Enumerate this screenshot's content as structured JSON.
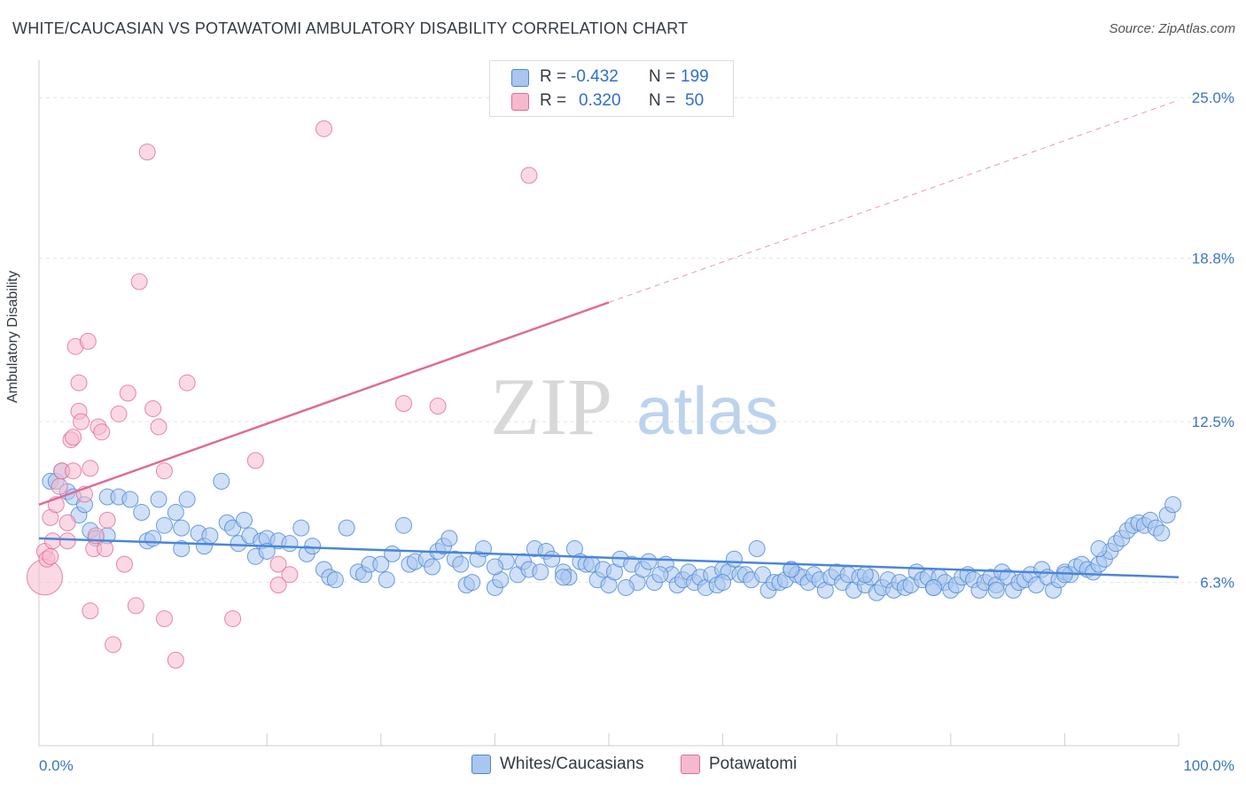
{
  "title": "WHITE/CAUCASIAN VS POTAWATOMI AMBULATORY DISABILITY CORRELATION CHART",
  "source": "Source: ZipAtlas.com",
  "watermark": {
    "zip": "ZIP",
    "atlas": "atlas"
  },
  "colors": {
    "blue": "#4a86d8",
    "blue_fill": "#a9c6ee",
    "pink": "#e06c95",
    "pink_fill": "#f5b9cd",
    "tick_label": "#3a75c4"
  },
  "legend": {
    "rows": [
      {
        "r_label": "R =",
        "r_value": "-0.432",
        "n_label": "N =",
        "n_value": "199"
      },
      {
        "r_label": "R =",
        "r_value": "0.320",
        "n_label": "N =",
        "n_value": "50"
      }
    ]
  },
  "bottom_legend": [
    "Whites/Caucasians",
    "Potawatomi"
  ],
  "chart_data": {
    "type": "scatter",
    "ylabel": "Ambulatory Disability",
    "xlim": [
      0,
      100
    ],
    "ylim": [
      0,
      26.1
    ],
    "y_ticks": [
      6.3,
      12.5,
      18.8,
      25.0
    ],
    "y_tick_labels": [
      "6.3%",
      "12.5%",
      "18.8%",
      "25.0%"
    ],
    "x_tick_labels": [
      "0.0%",
      "100.0%"
    ],
    "grid": true,
    "series": [
      {
        "name": "Whites/Caucasians",
        "color": "#4a86d8",
        "trend": {
          "x0": 0,
          "y0": 8.0,
          "x1": 100,
          "y1": 6.5,
          "dashed_to": null
        },
        "points": [
          [
            1,
            10.2
          ],
          [
            1.5,
            10.2
          ],
          [
            2,
            10.6
          ],
          [
            2.5,
            9.8
          ],
          [
            3,
            9.6
          ],
          [
            3.5,
            8.9
          ],
          [
            4,
            9.3
          ],
          [
            4.5,
            8.3
          ],
          [
            5,
            8.0
          ],
          [
            6,
            9.6
          ],
          [
            7,
            9.6
          ],
          [
            8,
            9.5
          ],
          [
            9,
            9.0
          ],
          [
            9.5,
            7.9
          ],
          [
            10,
            8.0
          ],
          [
            10.5,
            9.5
          ],
          [
            11,
            8.5
          ],
          [
            12,
            9.0
          ],
          [
            12.5,
            8.4
          ],
          [
            13,
            9.5
          ],
          [
            14,
            8.2
          ],
          [
            14.5,
            7.7
          ],
          [
            15,
            8.1
          ],
          [
            16,
            10.2
          ],
          [
            16.5,
            8.6
          ],
          [
            17,
            8.4
          ],
          [
            17.5,
            7.8
          ],
          [
            18,
            8.7
          ],
          [
            18.5,
            8.1
          ],
          [
            19,
            7.3
          ],
          [
            19.5,
            7.9
          ],
          [
            20,
            8.0
          ],
          [
            21,
            7.9
          ],
          [
            22,
            7.8
          ],
          [
            23,
            8.4
          ],
          [
            23.5,
            7.4
          ],
          [
            24,
            7.7
          ],
          [
            25,
            6.8
          ],
          [
            25.5,
            6.5
          ],
          [
            26,
            6.4
          ],
          [
            27,
            8.4
          ],
          [
            28,
            6.7
          ],
          [
            28.5,
            6.6
          ],
          [
            29,
            7.0
          ],
          [
            30,
            7.0
          ],
          [
            31,
            7.4
          ],
          [
            32,
            8.5
          ],
          [
            32.5,
            7.0
          ],
          [
            33,
            7.1
          ],
          [
            34,
            7.2
          ],
          [
            34.5,
            6.9
          ],
          [
            35,
            7.5
          ],
          [
            35.5,
            7.7
          ],
          [
            36,
            8.0
          ],
          [
            36.5,
            7.2
          ],
          [
            37,
            7.0
          ],
          [
            37.5,
            6.2
          ],
          [
            38,
            6.3
          ],
          [
            38.5,
            7.2
          ],
          [
            39,
            7.6
          ],
          [
            40,
            6.1
          ],
          [
            40.5,
            6.4
          ],
          [
            41,
            7.1
          ],
          [
            42,
            6.6
          ],
          [
            42.5,
            7.1
          ],
          [
            43,
            6.8
          ],
          [
            43.5,
            7.6
          ],
          [
            44,
            6.7
          ],
          [
            44.5,
            7.5
          ],
          [
            45,
            7.2
          ],
          [
            46,
            6.7
          ],
          [
            46.5,
            6.5
          ],
          [
            47,
            7.6
          ],
          [
            47.5,
            7.1
          ],
          [
            48,
            7.0
          ],
          [
            48.5,
            7.0
          ],
          [
            49,
            6.4
          ],
          [
            49.5,
            6.8
          ],
          [
            50,
            6.2
          ],
          [
            50.5,
            6.7
          ],
          [
            51,
            7.2
          ],
          [
            52,
            7.0
          ],
          [
            52.5,
            6.3
          ],
          [
            53,
            6.8
          ],
          [
            53.5,
            7.1
          ],
          [
            54,
            6.3
          ],
          [
            55,
            7.0
          ],
          [
            55.5,
            6.6
          ],
          [
            56,
            6.2
          ],
          [
            56.5,
            6.4
          ],
          [
            57,
            6.7
          ],
          [
            57.5,
            6.3
          ],
          [
            58,
            6.5
          ],
          [
            58.5,
            6.1
          ],
          [
            59,
            6.6
          ],
          [
            59.5,
            6.2
          ],
          [
            60,
            6.8
          ],
          [
            60.5,
            6.7
          ],
          [
            61,
            7.2
          ],
          [
            61.5,
            6.6
          ],
          [
            62,
            6.6
          ],
          [
            62.5,
            6.4
          ],
          [
            63,
            7.6
          ],
          [
            63.5,
            6.6
          ],
          [
            64,
            6.0
          ],
          [
            64.5,
            6.3
          ],
          [
            65,
            6.3
          ],
          [
            65.5,
            6.4
          ],
          [
            66,
            6.8
          ],
          [
            66.5,
            6.6
          ],
          [
            67,
            6.5
          ],
          [
            67.5,
            6.3
          ],
          [
            68,
            6.6
          ],
          [
            68.5,
            6.4
          ],
          [
            69,
            6.0
          ],
          [
            69.5,
            6.5
          ],
          [
            70,
            6.7
          ],
          [
            70.5,
            6.3
          ],
          [
            71,
            6.6
          ],
          [
            71.5,
            6.0
          ],
          [
            72,
            6.5
          ],
          [
            72.5,
            6.2
          ],
          [
            73,
            6.5
          ],
          [
            73.5,
            5.9
          ],
          [
            74,
            6.1
          ],
          [
            74.5,
            6.4
          ],
          [
            75,
            6.0
          ],
          [
            75.5,
            6.3
          ],
          [
            76,
            6.1
          ],
          [
            76.5,
            6.2
          ],
          [
            77,
            6.7
          ],
          [
            77.5,
            6.4
          ],
          [
            78,
            6.5
          ],
          [
            78.5,
            6.1
          ],
          [
            79,
            6.5
          ],
          [
            79.5,
            6.3
          ],
          [
            80,
            6.0
          ],
          [
            80.5,
            6.2
          ],
          [
            81,
            6.5
          ],
          [
            81.5,
            6.6
          ],
          [
            82,
            6.4
          ],
          [
            82.5,
            6.0
          ],
          [
            83,
            6.3
          ],
          [
            83.5,
            6.5
          ],
          [
            84,
            6.2
          ],
          [
            84.5,
            6.7
          ],
          [
            85,
            6.5
          ],
          [
            85.5,
            6.0
          ],
          [
            86,
            6.3
          ],
          [
            86.5,
            6.4
          ],
          [
            87,
            6.6
          ],
          [
            87.5,
            6.2
          ],
          [
            88,
            6.8
          ],
          [
            88.5,
            6.5
          ],
          [
            89,
            6.0
          ],
          [
            89.5,
            6.4
          ],
          [
            90,
            6.7
          ],
          [
            90.5,
            6.6
          ],
          [
            91,
            6.9
          ],
          [
            91.5,
            7.0
          ],
          [
            92,
            6.8
          ],
          [
            92.5,
            6.7
          ],
          [
            93,
            7.0
          ],
          [
            93.5,
            7.2
          ],
          [
            94,
            7.5
          ],
          [
            94.5,
            7.8
          ],
          [
            95,
            8.0
          ],
          [
            95.5,
            8.3
          ],
          [
            96,
            8.5
          ],
          [
            96.5,
            8.6
          ],
          [
            97,
            8.5
          ],
          [
            97.5,
            8.7
          ],
          [
            98,
            8.4
          ],
          [
            98.5,
            8.2
          ],
          [
            99,
            8.9
          ],
          [
            99.5,
            9.3
          ],
          [
            6,
            8.1
          ],
          [
            12.5,
            7.6
          ],
          [
            20,
            7.5
          ],
          [
            30.5,
            6.4
          ],
          [
            40,
            6.9
          ],
          [
            46,
            6.5
          ],
          [
            51.5,
            6.1
          ],
          [
            54.5,
            6.6
          ],
          [
            60,
            6.3
          ],
          [
            66,
            6.8
          ],
          [
            72.5,
            6.6
          ],
          [
            78.5,
            6.1
          ],
          [
            84,
            6.0
          ],
          [
            90,
            6.6
          ],
          [
            93,
            7.6
          ]
        ]
      },
      {
        "name": "Potawatomi",
        "color": "#e06c95",
        "trend": {
          "x0": 0,
          "y0": 9.3,
          "x1": 50,
          "y1": 17.1,
          "dashed_to": [
            100,
            24.9
          ]
        },
        "points": [
          [
            0.5,
            6.5
          ],
          [
            0.5,
            7.5
          ],
          [
            0.7,
            7.2
          ],
          [
            1,
            8.8
          ],
          [
            1.2,
            7.9
          ],
          [
            1.5,
            9.3
          ],
          [
            1.8,
            10.0
          ],
          [
            2,
            10.6
          ],
          [
            2.5,
            8.6
          ],
          [
            2.5,
            7.9
          ],
          [
            2.8,
            11.8
          ],
          [
            3,
            10.6
          ],
          [
            3,
            11.9
          ],
          [
            3.2,
            15.4
          ],
          [
            3.5,
            12.9
          ],
          [
            3.5,
            14.0
          ],
          [
            3.7,
            12.5
          ],
          [
            4,
            9.7
          ],
          [
            4.3,
            15.6
          ],
          [
            4.5,
            5.2
          ],
          [
            4.5,
            10.7
          ],
          [
            4.8,
            7.6
          ],
          [
            5,
            8.1
          ],
          [
            5.2,
            12.3
          ],
          [
            5.5,
            12.1
          ],
          [
            5.8,
            7.6
          ],
          [
            6,
            8.7
          ],
          [
            6.5,
            3.9
          ],
          [
            7,
            12.8
          ],
          [
            7.5,
            7.0
          ],
          [
            7.8,
            13.6
          ],
          [
            8.5,
            5.4
          ],
          [
            8.8,
            17.9
          ],
          [
            9.5,
            22.9
          ],
          [
            10,
            13.0
          ],
          [
            10.5,
            12.3
          ],
          [
            11,
            10.6
          ],
          [
            11,
            4.9
          ],
          [
            12,
            3.3
          ],
          [
            13,
            14.0
          ],
          [
            17,
            4.9
          ],
          [
            19,
            11.0
          ],
          [
            21,
            7.0
          ],
          [
            21,
            6.2
          ],
          [
            22,
            6.6
          ],
          [
            25,
            23.8
          ],
          [
            32,
            13.2
          ],
          [
            35,
            13.1
          ],
          [
            43,
            22.0
          ],
          [
            1,
            7.3
          ]
        ]
      }
    ]
  }
}
